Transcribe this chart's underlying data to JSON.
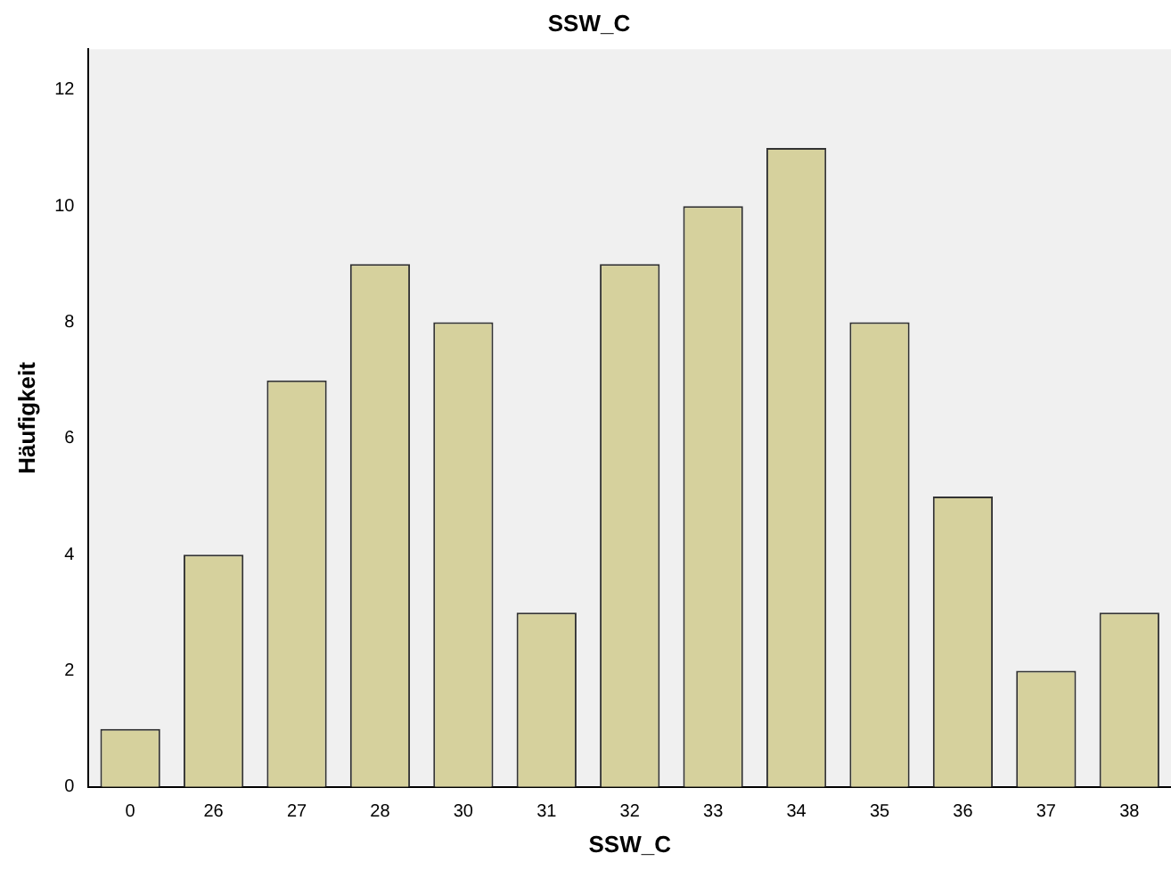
{
  "chart_data": {
    "type": "bar",
    "title": "SSW_C",
    "xlabel": "SSW_C",
    "ylabel": "Häufigkeit",
    "categories": [
      "0",
      "26",
      "27",
      "28",
      "30",
      "31",
      "32",
      "33",
      "34",
      "35",
      "36",
      "37",
      "38"
    ],
    "values": [
      1,
      4,
      7,
      9,
      8,
      3,
      9,
      10,
      11,
      8,
      5,
      2,
      3
    ],
    "color": "#d6d19d",
    "ylim": [
      0,
      12.7
    ],
    "yticks": [
      0,
      2,
      4,
      6,
      8,
      10,
      12
    ],
    "grid": false,
    "legend": false
  }
}
